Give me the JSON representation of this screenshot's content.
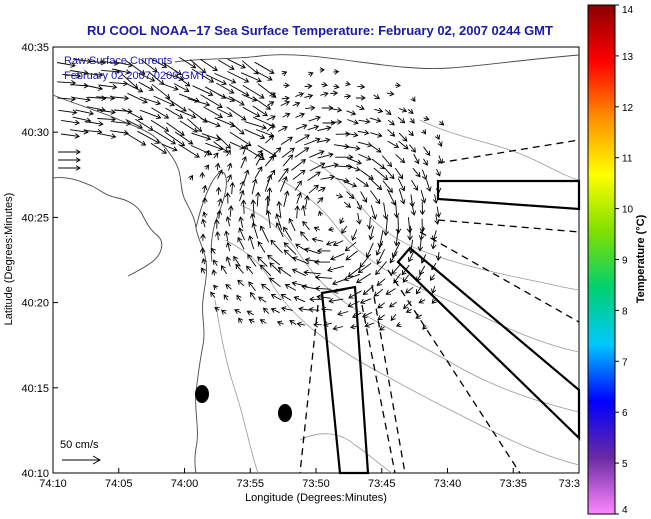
{
  "chart_data": {
    "type": "vector-field",
    "title": "RU COOL  NOAA−17  Sea Surface Temperature:  February 02, 2007 0244 GMT",
    "xlabel": "Longitude (Degrees:Minutes)",
    "ylabel": "Latitude (Degrees:Minutes)",
    "x_ticks": [
      "74:10",
      "74:05",
      "74:00",
      "73:55",
      "73:50",
      "73:45",
      "73:40",
      "73:35",
      "73:3"
    ],
    "y_ticks": [
      "40:35",
      "40:30",
      "40:25",
      "40:20",
      "40:15",
      "40:10"
    ],
    "xlim_min": [
      -10,
      30
    ],
    "ylim_min": [
      10,
      35
    ],
    "annotations": [
      "Raw Surface Currents",
      "February 02 2007 0200 GMT"
    ],
    "scale_label": "50 cm/s",
    "colorbar": {
      "label": "Temperature (°C)",
      "ticks": [
        "14",
        "13",
        "12",
        "11",
        "10",
        "9",
        "8",
        "7",
        "6",
        "5",
        "4"
      ],
      "range": [
        4,
        14
      ]
    },
    "colorbar_stops": [
      "#ff88ff",
      "#6a2aa3",
      "#0000ff",
      "#00c8ff",
      "#00d070",
      "#80e000",
      "#ffff00",
      "#ff9000",
      "#ff0000",
      "#8b0000"
    ],
    "grid": false
  }
}
